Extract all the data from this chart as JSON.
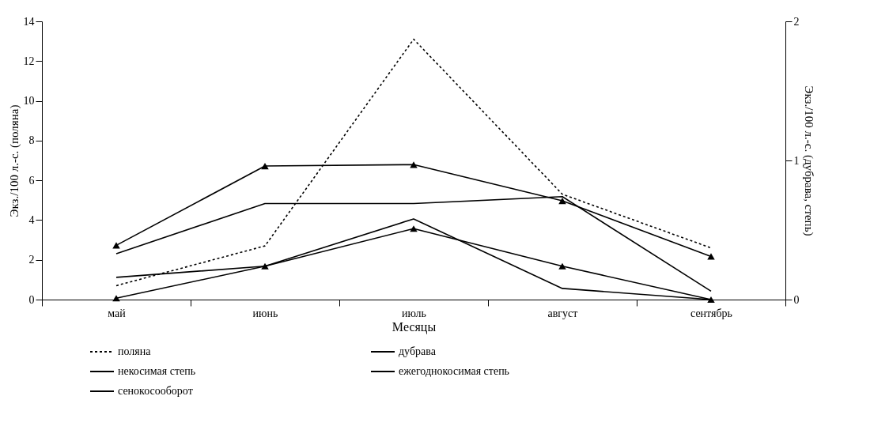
{
  "chart_data": {
    "type": "line",
    "xlabel": "Месяцы",
    "ylabel": "Экз./100 л.-с. (поляна)",
    "y2label": "Экз./100 л.-с. (дубрава, степь)",
    "categories": [
      "май",
      "июнь",
      "июль",
      "август",
      "сентябрь"
    ],
    "series": [
      {
        "name": "поляна",
        "color": "#000000",
        "line_style": "dotted",
        "marker": "none",
        "values": [
          0.7,
          2.7,
          13.1,
          5.3,
          2.6
        ]
      },
      {
        "name": "дубрава",
        "color": "#000000",
        "line_style": "solid",
        "marker": "none",
        "axis": "y2",
        "values": [
          0.16,
          0.24,
          0.58,
          0.08,
          0
        ]
      },
      {
        "name": "некосимая степь",
        "color": "#000000",
        "line_style": "solid",
        "marker": "triangle",
        "axis": "y2",
        "values": [
          0.01,
          0.24,
          0.51,
          0.24,
          0
        ]
      },
      {
        "name": "ежегоднокосимая степь",
        "color": "#000000",
        "line_style": "solid",
        "marker": "none",
        "axis": "y2",
        "values": [
          0.33,
          0.69,
          0.69,
          0.74,
          0.06
        ]
      },
      {
        "name": "сенокосооборот",
        "color": "#000000",
        "line_style": "solid",
        "marker": "triangle",
        "axis": "y2",
        "values": [
          0.39,
          0.96,
          0.97,
          0.71,
          0.31
        ]
      }
    ],
    "ylim": [
      0,
      14
    ],
    "yticks": [
      0,
      2,
      4,
      6,
      8,
      10,
      12,
      14
    ],
    "y2lim": [
      0,
      2
    ],
    "y2ticks": [
      0,
      1,
      2
    ],
    "grid": false,
    "legend": "bottom"
  }
}
